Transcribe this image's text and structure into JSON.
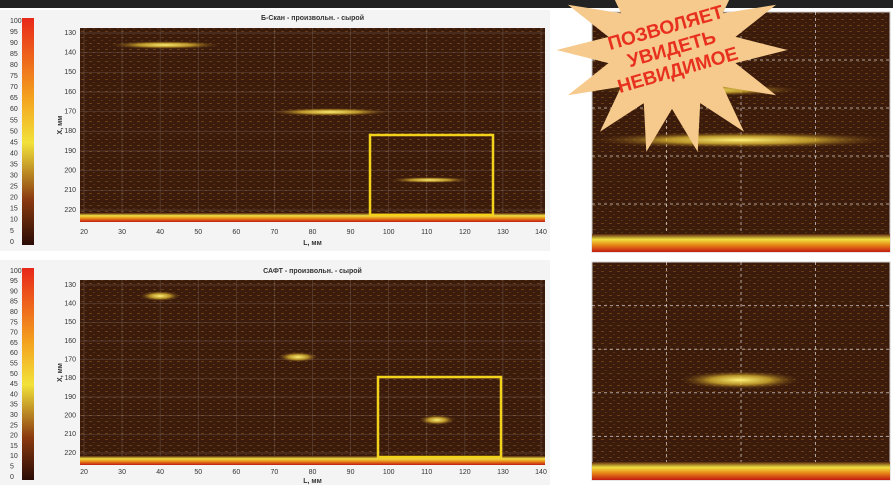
{
  "panels": [
    {
      "title": "Б-Скан - произвольн. - сырой",
      "colorbar_ticks": [
        100,
        95,
        90,
        85,
        80,
        75,
        70,
        65,
        60,
        55,
        50,
        45,
        40,
        35,
        30,
        25,
        20,
        15,
        10,
        5,
        0
      ],
      "y_label": "X, мм",
      "y_ticks": [
        130,
        140,
        150,
        160,
        170,
        180,
        190,
        200,
        210,
        220
      ],
      "x_label": "L, мм",
      "x_ticks": [
        20,
        30,
        40,
        50,
        60,
        70,
        80,
        90,
        100,
        110,
        120,
        130,
        140
      ]
    },
    {
      "title": "САФТ - произвольн. - сырой",
      "colorbar_ticks": [
        100,
        95,
        90,
        85,
        80,
        75,
        70,
        65,
        60,
        55,
        50,
        45,
        40,
        35,
        30,
        25,
        20,
        15,
        10,
        5,
        0
      ],
      "y_label": "X, мм",
      "y_ticks": [
        130,
        140,
        150,
        160,
        170,
        180,
        190,
        200,
        210,
        220
      ],
      "x_label": "L, мм",
      "x_ticks": [
        20,
        30,
        40,
        50,
        60,
        70,
        80,
        90,
        100,
        110,
        120,
        130,
        140
      ]
    }
  ],
  "badge": {
    "lines": [
      "ПОЗВОЛЯЕТ",
      "УВИДЕТЬ",
      "НЕВИДИМОЕ"
    ]
  }
}
